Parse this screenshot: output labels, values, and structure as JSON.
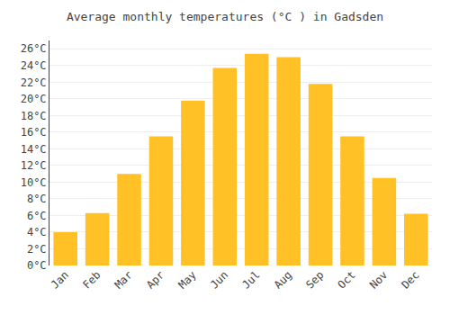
{
  "chart_data": {
    "type": "bar",
    "title": "Average monthly temperatures (°C ) in Gadsden",
    "categories": [
      "Jan",
      "Feb",
      "Mar",
      "Apr",
      "May",
      "Jun",
      "Jul",
      "Aug",
      "Sep",
      "Oct",
      "Nov",
      "Dec"
    ],
    "values": [
      4.0,
      6.3,
      11.0,
      15.5,
      19.8,
      23.7,
      25.4,
      25.0,
      21.8,
      15.5,
      10.5,
      6.2
    ],
    "color": "#FFC125",
    "ylim": [
      0,
      27
    ],
    "yticks": [
      {
        "value": 0,
        "label": "0°C"
      },
      {
        "value": 2,
        "label": "2°C"
      },
      {
        "value": 4,
        "label": "4°C"
      },
      {
        "value": 6,
        "label": "6°C"
      },
      {
        "value": 8,
        "label": "8°C"
      },
      {
        "value": 10,
        "label": "10°C"
      },
      {
        "value": 12,
        "label": "12°C"
      },
      {
        "value": 14,
        "label": "14°C"
      },
      {
        "value": 16,
        "label": "16°C"
      },
      {
        "value": 18,
        "label": "18°C"
      },
      {
        "value": 20,
        "label": "20°C"
      },
      {
        "value": 22,
        "label": "22°C"
      },
      {
        "value": 24,
        "label": "24°C"
      },
      {
        "value": 26,
        "label": "26°C"
      }
    ],
    "grid": true
  }
}
